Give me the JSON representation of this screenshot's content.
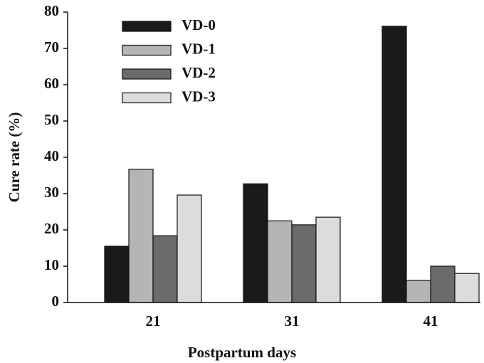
{
  "chart_data": {
    "type": "bar",
    "x_label": "Postpartum days",
    "y_label": "Cure rate (%)",
    "categories": [
      "21",
      "31",
      "41"
    ],
    "series": [
      {
        "name": "VD-0",
        "color": "#1a1a1a",
        "values": [
          15.5,
          32.7,
          76.1
        ]
      },
      {
        "name": "VD-1",
        "color": "#b5b5b8",
        "values": [
          36.7,
          22.5,
          6.1
        ]
      },
      {
        "name": "VD-2",
        "color": "#6b6b6b",
        "values": [
          18.4,
          21.4,
          10
        ]
      },
      {
        "name": "VD-3",
        "color": "#dcdcde",
        "values": [
          29.6,
          23.5,
          8
        ]
      }
    ],
    "ylim": [
      0,
      80
    ],
    "yticks": [
      0,
      10,
      20,
      30,
      40,
      50,
      60,
      70,
      80
    ],
    "legend": "upper left",
    "grid": false
  }
}
